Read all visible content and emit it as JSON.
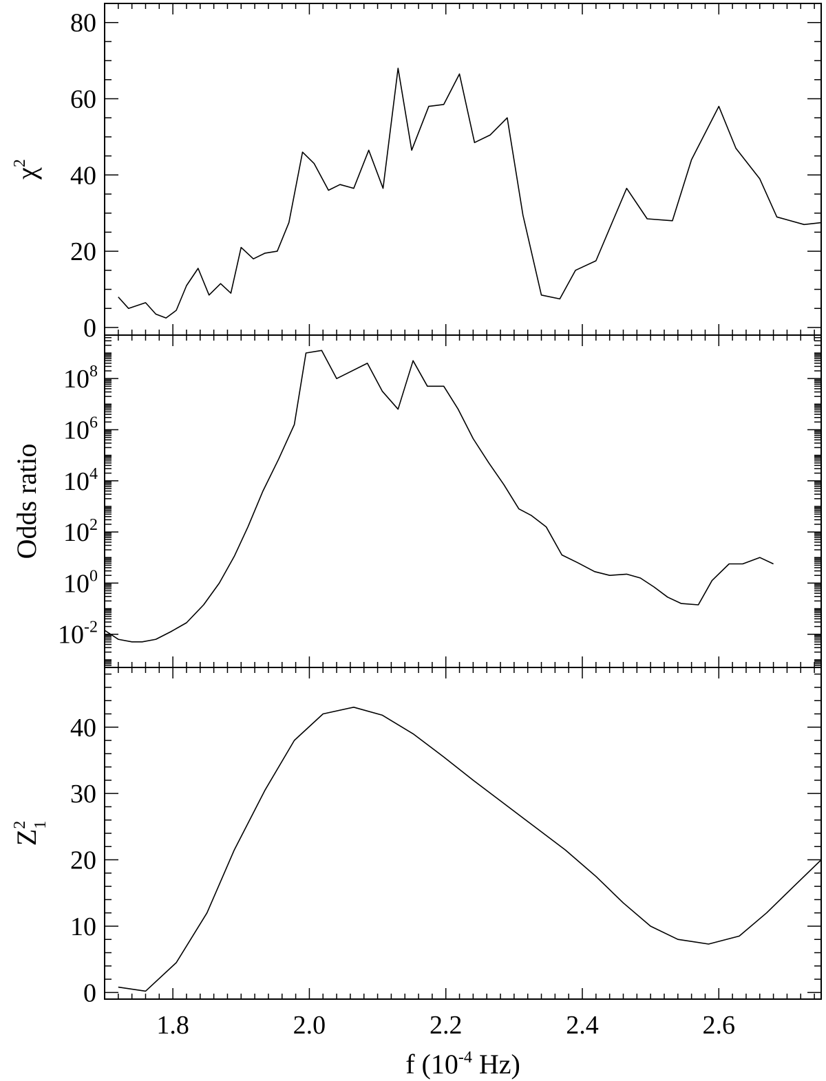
{
  "colors": {
    "line": "#000000",
    "background": "#ffffff"
  },
  "chart_data": [
    {
      "type": "line",
      "panel": "top",
      "ylabel": "χ",
      "ylabel_sup": "2",
      "xlim": [
        1.7,
        2.75
      ],
      "ylim": [
        -2,
        85
      ],
      "yscale": "linear",
      "yticks": [
        0,
        20,
        40,
        60,
        80
      ],
      "ytick_labels": [
        "0",
        "20",
        "40",
        "60",
        "80"
      ],
      "yminor_step": 5,
      "grid": false,
      "series": [
        {
          "x": [
            1.72,
            1.735,
            1.76,
            1.775,
            1.79,
            1.805,
            1.82,
            1.837,
            1.853,
            1.87,
            1.885,
            1.9,
            1.918,
            1.935,
            1.953,
            1.97,
            1.99,
            2.007,
            2.028,
            2.045,
            2.065,
            2.087,
            2.108,
            2.13,
            2.15,
            2.175,
            2.197,
            2.22,
            2.242,
            2.265,
            2.29,
            2.313,
            2.34,
            2.367,
            2.39,
            2.42,
            2.44,
            2.465,
            2.495,
            2.532,
            2.56,
            2.6,
            2.625,
            2.66,
            2.685,
            2.725,
            2.75
          ],
          "y": [
            8,
            5,
            6.5,
            3.5,
            2.5,
            4.5,
            11,
            15.5,
            8.5,
            11.5,
            9,
            21,
            18,
            19.5,
            20,
            27.5,
            46,
            43,
            36,
            37.5,
            36.5,
            46.5,
            36.5,
            68,
            46.5,
            58,
            58.5,
            66.5,
            48.5,
            50.5,
            55,
            29.5,
            8.5,
            7.5,
            15,
            17.5,
            26,
            36.5,
            28.5,
            28,
            44,
            58,
            47,
            39,
            29,
            27,
            27.5
          ]
        }
      ]
    },
    {
      "type": "line",
      "panel": "middle",
      "ylabel": "Odds ratio",
      "xlim": [
        1.7,
        2.75
      ],
      "ylim": [
        -3.3,
        9.7
      ],
      "yscale": "log",
      "yticks": [
        -2,
        0,
        2,
        4,
        6,
        8
      ],
      "ytick_base": "10",
      "ytick_exponents": [
        "-2",
        "0",
        "2",
        "4",
        "6",
        "8"
      ],
      "grid": false,
      "series": [
        {
          "x": [
            1.7,
            1.72,
            1.74,
            1.755,
            1.775,
            1.797,
            1.82,
            1.845,
            1.868,
            1.89,
            1.91,
            1.932,
            1.955,
            1.978,
            1.995,
            2.018,
            2.04,
            2.085,
            2.107,
            2.13,
            2.152,
            2.173,
            2.197,
            2.218,
            2.24,
            2.263,
            2.285,
            2.307,
            2.325,
            2.347,
            2.37,
            2.393,
            2.418,
            2.44,
            2.465,
            2.485,
            2.505,
            2.525,
            2.545,
            2.57,
            2.59,
            2.615,
            2.635,
            2.66,
            2.68
          ],
          "y": [
            -1.85,
            -2.2,
            -2.3,
            -2.3,
            -2.2,
            -1.9,
            -1.55,
            -0.85,
            0.0,
            1.05,
            2.2,
            3.6,
            4.85,
            6.2,
            9.0,
            9.1,
            8.0,
            8.6,
            7.5,
            6.8,
            8.7,
            7.7,
            7.7,
            6.8,
            5.65,
            4.7,
            3.85,
            2.9,
            2.65,
            2.2,
            1.1,
            0.8,
            0.45,
            0.3,
            0.35,
            0.2,
            -0.15,
            -0.55,
            -0.8,
            -0.85,
            0.1,
            0.75,
            0.75,
            1.0,
            0.75
          ]
        }
      ]
    },
    {
      "type": "line",
      "panel": "bottom",
      "ylabel": "Z",
      "ylabel_sup": "2",
      "ylabel_sub": "1",
      "xlabel_prefix": "f (10",
      "xlabel_sup": "-4",
      "xlabel_suffix": " Hz)",
      "xlim": [
        1.7,
        2.75
      ],
      "ylim": [
        -1,
        49
      ],
      "yscale": "linear",
      "yticks": [
        0,
        10,
        20,
        30,
        40
      ],
      "ytick_labels": [
        "0",
        "10",
        "20",
        "30",
        "40"
      ],
      "yminor_step": 2,
      "xticks": [
        1.8,
        2.0,
        2.2,
        2.4,
        2.6
      ],
      "xtick_labels": [
        "1.8",
        "2.0",
        "2.2",
        "2.4",
        "2.6"
      ],
      "xminor_step": 0.02,
      "grid": false,
      "series": [
        {
          "x": [
            1.72,
            1.76,
            1.805,
            1.85,
            1.89,
            1.935,
            1.978,
            2.02,
            2.065,
            2.107,
            2.152,
            2.197,
            2.24,
            2.285,
            2.33,
            2.375,
            2.42,
            2.46,
            2.5,
            2.54,
            2.585,
            2.63,
            2.67,
            2.71,
            2.75
          ],
          "y": [
            0.8,
            0.2,
            4.5,
            12,
            21.5,
            30.5,
            38,
            42,
            43,
            41.8,
            39,
            35.5,
            32,
            28.5,
            25,
            21.5,
            17.5,
            13.5,
            10,
            8,
            7.3,
            8.5,
            12,
            16,
            20
          ]
        }
      ]
    }
  ]
}
